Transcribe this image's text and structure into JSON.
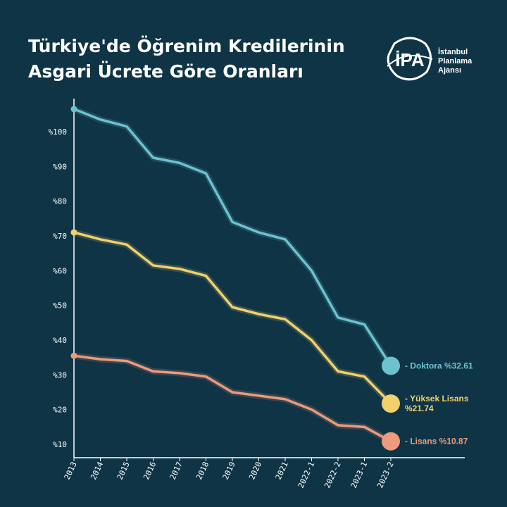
{
  "title_lines": [
    "Türkiye'de Öğrenim Kredilerinin",
    "Asgari Ücrete Göre Oranları"
  ],
  "logo": {
    "mark_text": "İPA",
    "lines": [
      "İstanbul",
      "Planlama",
      "Ajansı"
    ]
  },
  "colors": {
    "background": "#0f3446",
    "axis": "#ffffff",
    "doktora": "#6cc3cf",
    "yuksek_lisans": "#f2d06b",
    "lisans": "#ee9a7c"
  },
  "chart_data": {
    "type": "line",
    "categories": [
      "2013",
      "2014",
      "2015",
      "2016",
      "2017",
      "2018",
      "2019",
      "2020",
      "2021",
      "2022-1",
      "2022-2",
      "2023-1",
      "2023-2"
    ],
    "yticks": [
      "%10",
      "%20",
      "%30",
      "%40",
      "%50",
      "%60",
      "%70",
      "%80",
      "%90",
      "%100"
    ],
    "ytick_values": [
      10,
      20,
      30,
      40,
      50,
      60,
      70,
      80,
      90,
      100
    ],
    "ylim": [
      7,
      107
    ],
    "series": [
      {
        "key": "doktora",
        "label_lines": [
          "- Doktora %32.61"
        ],
        "values": [
          106.5,
          103.5,
          101.5,
          92.5,
          91,
          88,
          74,
          71,
          69,
          60,
          46.5,
          44.5,
          32.61
        ]
      },
      {
        "key": "yuksek_lisans",
        "label_lines": [
          "- Yüksek Lisans",
          "%21.74"
        ],
        "values": [
          71,
          69,
          67.5,
          61.5,
          60.5,
          58.5,
          49.5,
          47.5,
          46,
          40,
          31,
          29.5,
          21.74
        ]
      },
      {
        "key": "lisans",
        "label_lines": [
          "- Lisans %10.87"
        ],
        "values": [
          35.5,
          34.5,
          34,
          31,
          30.5,
          29.5,
          25,
          24,
          23,
          20,
          15.5,
          15,
          10.87
        ]
      }
    ]
  }
}
